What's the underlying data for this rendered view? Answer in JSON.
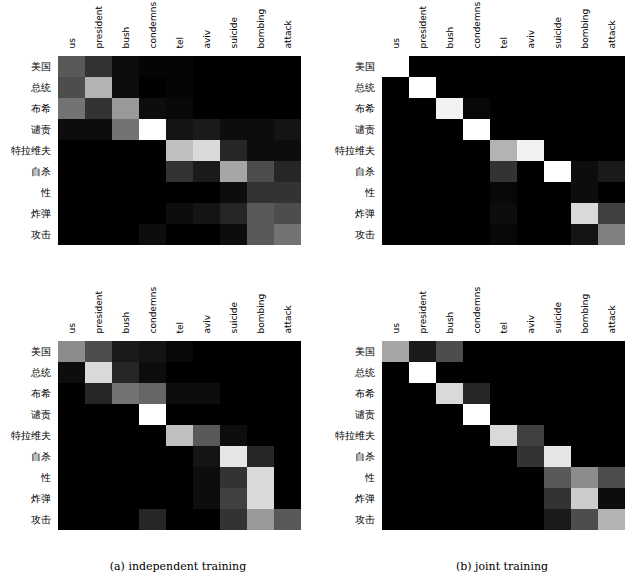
{
  "chart_data": [
    {
      "type": "heatmap",
      "x_categories": [
        "us",
        "president",
        "bush",
        "condemns",
        "tel",
        "aviv",
        "suicide",
        "bombing",
        "attack"
      ],
      "y_categories": [
        "美国",
        "总统",
        "布希",
        "谴责",
        "特拉维夫",
        "自杀",
        "性",
        "炸弹",
        "攻击"
      ],
      "zlim": [
        0,
        1
      ],
      "cells": [
        [
          0.35,
          0.2,
          0.05,
          0.02,
          0.02,
          0,
          0,
          0,
          0
        ],
        [
          0.3,
          0.7,
          0.05,
          0,
          0.02,
          0,
          0,
          0,
          0
        ],
        [
          0.45,
          0.2,
          0.6,
          0.05,
          0.03,
          0,
          0,
          0,
          0
        ],
        [
          0.05,
          0.05,
          0.45,
          1.0,
          0.08,
          0.1,
          0.05,
          0.05,
          0.08
        ],
        [
          0,
          0,
          0,
          0,
          0.75,
          0.85,
          0.15,
          0.05,
          0.05
        ],
        [
          0,
          0,
          0,
          0,
          0.2,
          0.1,
          0.65,
          0.3,
          0.15
        ],
        [
          0,
          0,
          0,
          0,
          0,
          0,
          0.05,
          0.2,
          0.2
        ],
        [
          0,
          0,
          0,
          0,
          0.05,
          0.08,
          0.15,
          0.35,
          0.3
        ],
        [
          0,
          0,
          0,
          0.05,
          0,
          0,
          0.05,
          0.35,
          0.45
        ]
      ]
    },
    {
      "type": "heatmap",
      "x_categories": [
        "us",
        "president",
        "bush",
        "condemns",
        "tel",
        "aviv",
        "suicide",
        "bombing",
        "attack"
      ],
      "y_categories": [
        "美国",
        "总统",
        "布希",
        "谴责",
        "特拉维夫",
        "自杀",
        "性",
        "炸弹",
        "攻击"
      ],
      "zlim": [
        0,
        1
      ],
      "cells": [
        [
          1.0,
          0,
          0,
          0,
          0,
          0,
          0,
          0,
          0
        ],
        [
          0,
          1.0,
          0,
          0,
          0,
          0,
          0,
          0,
          0
        ],
        [
          0,
          0,
          0.95,
          0.03,
          0,
          0,
          0,
          0,
          0
        ],
        [
          0,
          0,
          0,
          1.0,
          0,
          0,
          0,
          0,
          0
        ],
        [
          0,
          0,
          0,
          0,
          0.7,
          0.95,
          0,
          0,
          0
        ],
        [
          0,
          0,
          0,
          0,
          0.2,
          0,
          1.0,
          0.05,
          0.1
        ],
        [
          0,
          0,
          0,
          0,
          0.03,
          0,
          0,
          0.05,
          0
        ],
        [
          0,
          0,
          0,
          0,
          0.05,
          0,
          0,
          0.85,
          0.25
        ],
        [
          0,
          0,
          0,
          0,
          0.03,
          0,
          0,
          0.08,
          0.5
        ]
      ]
    },
    {
      "type": "heatmap",
      "caption": "(a) independent training",
      "x_categories": [
        "us",
        "president",
        "bush",
        "condemns",
        "tel",
        "aviv",
        "suicide",
        "bombing",
        "attack"
      ],
      "y_categories": [
        "美国",
        "总统",
        "布希",
        "谴责",
        "特拉维夫",
        "自杀",
        "性",
        "炸弹",
        "攻击"
      ],
      "zlim": [
        0,
        1
      ],
      "cells": [
        [
          0.55,
          0.3,
          0.1,
          0.08,
          0.03,
          0,
          0,
          0,
          0
        ],
        [
          0.05,
          0.85,
          0.15,
          0.05,
          0,
          0,
          0,
          0,
          0
        ],
        [
          0,
          0.15,
          0.45,
          0.4,
          0.05,
          0.05,
          0,
          0,
          0
        ],
        [
          0,
          0,
          0,
          1.0,
          0,
          0,
          0,
          0,
          0
        ],
        [
          0,
          0,
          0,
          0,
          0.75,
          0.35,
          0.05,
          0,
          0
        ],
        [
          0,
          0,
          0,
          0,
          0,
          0.08,
          0.9,
          0.15,
          0
        ],
        [
          0,
          0,
          0,
          0,
          0,
          0.05,
          0.2,
          0.85,
          0
        ],
        [
          0,
          0,
          0,
          0,
          0,
          0.05,
          0.25,
          0.85,
          0
        ],
        [
          0,
          0,
          0,
          0.15,
          0,
          0,
          0.2,
          0.6,
          0.35
        ]
      ]
    },
    {
      "type": "heatmap",
      "caption": "(b) joint training",
      "x_categories": [
        "us",
        "president",
        "bush",
        "condemns",
        "tel",
        "aviv",
        "suicide",
        "bombing",
        "attack"
      ],
      "y_categories": [
        "美国",
        "总统",
        "布希",
        "谴责",
        "特拉维夫",
        "自杀",
        "性",
        "炸弹",
        "攻击"
      ],
      "zlim": [
        0,
        1
      ],
      "cells": [
        [
          0.65,
          0.1,
          0.3,
          0,
          0,
          0,
          0,
          0,
          0
        ],
        [
          0,
          1.0,
          0,
          0,
          0,
          0,
          0,
          0,
          0
        ],
        [
          0,
          0,
          0.85,
          0.15,
          0,
          0,
          0,
          0,
          0
        ],
        [
          0,
          0,
          0,
          1.0,
          0,
          0,
          0,
          0,
          0
        ],
        [
          0,
          0,
          0,
          0,
          0.85,
          0.25,
          0,
          0,
          0
        ],
        [
          0,
          0,
          0,
          0,
          0,
          0.2,
          0.9,
          0,
          0
        ],
        [
          0,
          0,
          0,
          0,
          0,
          0,
          0.35,
          0.55,
          0.3
        ],
        [
          0,
          0,
          0,
          0,
          0,
          0,
          0.2,
          0.8,
          0.05
        ],
        [
          0,
          0,
          0,
          0,
          0,
          0,
          0.1,
          0.3,
          0.7
        ]
      ]
    }
  ]
}
